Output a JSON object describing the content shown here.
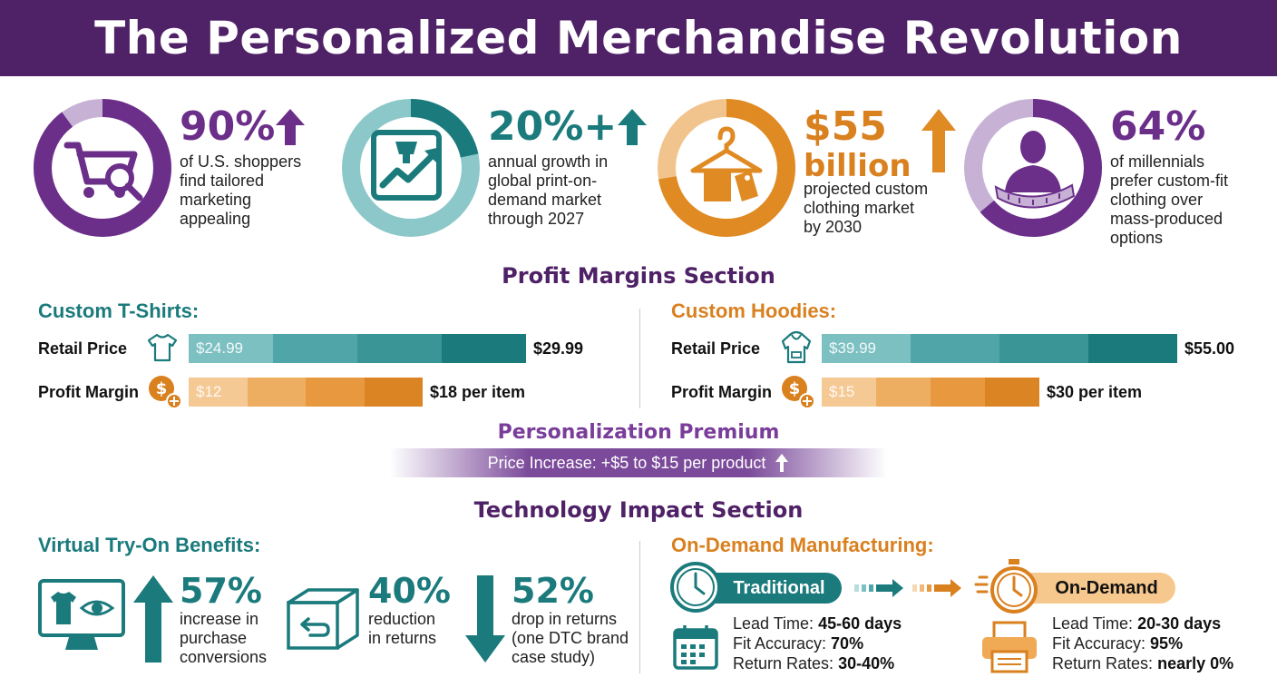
{
  "title": "The Personalized Merchandise Revolution",
  "colors": {
    "purple": "#6b2f8a",
    "teal": "#1b7a7c",
    "orange": "#d9801f",
    "banner": "#4f2166"
  },
  "stats": [
    {
      "value": "90%",
      "text": [
        "of U.S. shoppers",
        "find tailored",
        "marketing",
        "appealing"
      ],
      "icon": "shopping-cart-search-icon"
    },
    {
      "value": "20%+",
      "text": [
        "annual growth in",
        "global print-on-",
        "demand market",
        "through 2027"
      ],
      "icon": "print-growth-icon"
    },
    {
      "value": "$55",
      "value2": "billion",
      "text": [
        "projected custom",
        "clothing market",
        "by 2030"
      ],
      "icon": "hanger-tag-icon"
    },
    {
      "value": "64%",
      "text": [
        "of millennials",
        "prefer custom-fit",
        "clothing over",
        "mass-produced",
        "options"
      ],
      "icon": "person-measure-icon"
    }
  ],
  "profit": {
    "title": "Profit Margins Section",
    "tshirts": {
      "title": "Custom T-Shirts:",
      "retail_label": "Retail Price",
      "retail_low": "$24.99",
      "retail_high": "$29.99",
      "margin_label": "Profit Margin",
      "margin_low": "$12",
      "margin_high": "$18 per item"
    },
    "hoodies": {
      "title": "Custom Hoodies:",
      "retail_label": "Retail Price",
      "retail_low": "$39.99",
      "retail_high": "$55.00",
      "margin_label": "Profit Margin",
      "margin_low": "$15",
      "margin_high": "$30 per item"
    }
  },
  "premium": {
    "title": "Personalization Premium",
    "text": "Price Increase: +$5 to $15 per product"
  },
  "tech": {
    "title": "Technology Impact Section",
    "virtual": {
      "title": "Virtual Try-On Benefits:",
      "items": [
        {
          "value": "57%",
          "text": [
            "increase in",
            "purchase",
            "conversions"
          ]
        },
        {
          "value": "40%",
          "text": [
            "reduction",
            "in returns"
          ]
        },
        {
          "value": "52%",
          "text": [
            "drop in returns",
            "(one DTC brand",
            "case study)"
          ]
        }
      ]
    },
    "ondemand": {
      "title": "On-Demand Manufacturing:",
      "traditional": {
        "label": "Traditional",
        "lead_label": "Lead Time:",
        "lead": "45-60 days",
        "fit_label": "Fit Accuracy:",
        "fit": "70%",
        "ret_label": "Return Rates:",
        "ret": "30-40%"
      },
      "modern": {
        "label": "On-Demand",
        "lead_label": "Lead Time:",
        "lead": "20-30 days",
        "fit_label": "Fit Accuracy:",
        "fit": "95%",
        "ret_label": "Return Rates:",
        "ret": "nearly 0%"
      }
    }
  }
}
